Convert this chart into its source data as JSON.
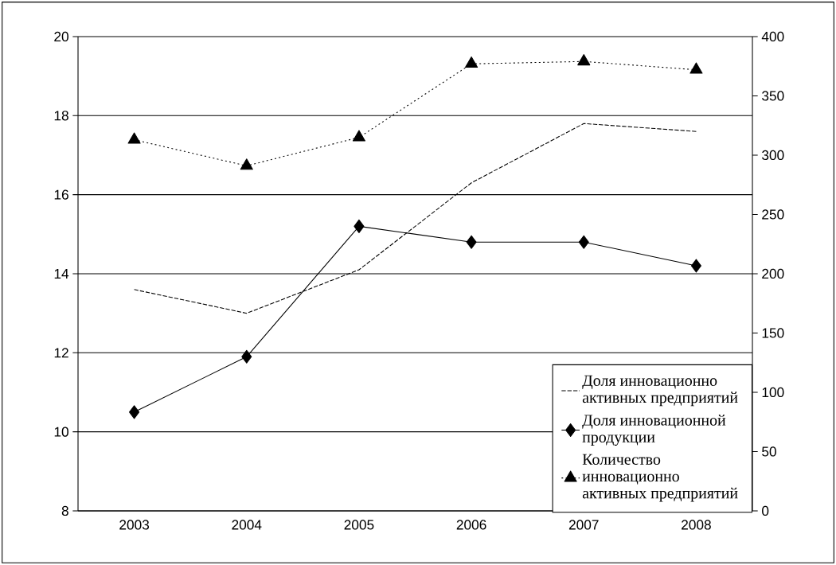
{
  "chart_data": {
    "type": "line",
    "categories": [
      "2003",
      "2004",
      "2005",
      "2006",
      "2007",
      "2008"
    ],
    "series": [
      {
        "name": "Доля инновационно активных предприятий",
        "color": "#000000",
        "values": [
          13.6,
          13.0,
          14.1,
          16.3,
          17.8,
          17.6
        ],
        "line_style": "dashed",
        "marker": "none"
      },
      {
        "name": "Доля инновационной продукции",
        "color": "#000000",
        "values": [
          10.5,
          11.9,
          15.2,
          14.8,
          14.8,
          14.2
        ],
        "line_style": "solid",
        "marker": "diamond"
      },
      {
        "name": "Количество инновационно активных предприятий",
        "color": "#000000",
        "values": [
          313,
          291,
          315,
          377,
          379,
          372
        ],
        "line_style": "dotted",
        "marker": "triangle",
        "axis": "y2"
      }
    ],
    "ylim": [
      8,
      20
    ],
    "yticks": [
      8,
      10,
      12,
      14,
      16,
      18,
      20
    ],
    "y2lim": [
      0,
      400
    ],
    "y2ticks": [
      0,
      50,
      100,
      150,
      200,
      250,
      300,
      350,
      400
    ],
    "grid": "y",
    "legend": "bottom right"
  }
}
